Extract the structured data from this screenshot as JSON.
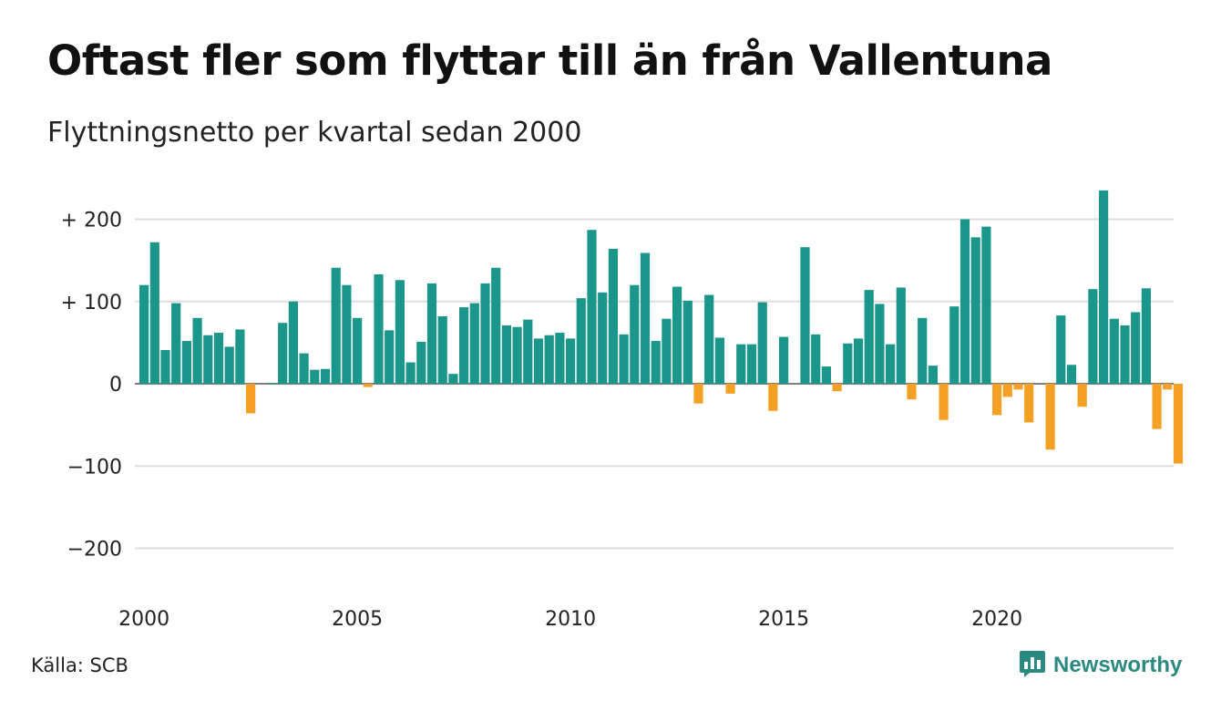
{
  "title": "Oftast fler som flyttar till än från Vallentuna",
  "subtitle": "Flyttningsnetto per kvartal sedan 2000",
  "source": "Källa: SCB",
  "brand": "Newsworthy",
  "colors": {
    "positive": "#1a968a",
    "negative": "#f4a024",
    "grid": "#dddddd",
    "brand": "#2a8a7f"
  },
  "chart_data": {
    "type": "bar",
    "start_year": 2000,
    "ylim": [
      -200,
      240
    ],
    "yticks": [
      {
        "value": 200,
        "label": "+ 200"
      },
      {
        "value": 100,
        "label": "+ 100"
      },
      {
        "value": 0,
        "label": "0"
      },
      {
        "value": -100,
        "label": "−100"
      },
      {
        "value": -200,
        "label": "−200"
      }
    ],
    "xticks": [
      "2000",
      "2005",
      "2010",
      "2015",
      "2020"
    ],
    "grid": true,
    "values": [
      120,
      172,
      41,
      98,
      52,
      80,
      59,
      62,
      45,
      66,
      -36,
      0,
      1,
      74,
      100,
      37,
      17,
      18,
      141,
      120,
      80,
      -4,
      133,
      65,
      126,
      26,
      51,
      122,
      82,
      12,
      93,
      98,
      122,
      141,
      71,
      69,
      78,
      55,
      59,
      62,
      55,
      104,
      187,
      111,
      164,
      60,
      120,
      159,
      52,
      79,
      118,
      101,
      -24,
      108,
      56,
      -12,
      48,
      48,
      99,
      -33,
      57,
      0,
      166,
      60,
      21,
      -9,
      49,
      55,
      114,
      97,
      48,
      117,
      -19,
      80,
      22,
      -44,
      94,
      200,
      178,
      191,
      -38,
      -16,
      -7,
      -47,
      0,
      -80,
      83,
      23,
      -28,
      115,
      235,
      79,
      71,
      87,
      116,
      -55,
      -7,
      -97
    ]
  }
}
